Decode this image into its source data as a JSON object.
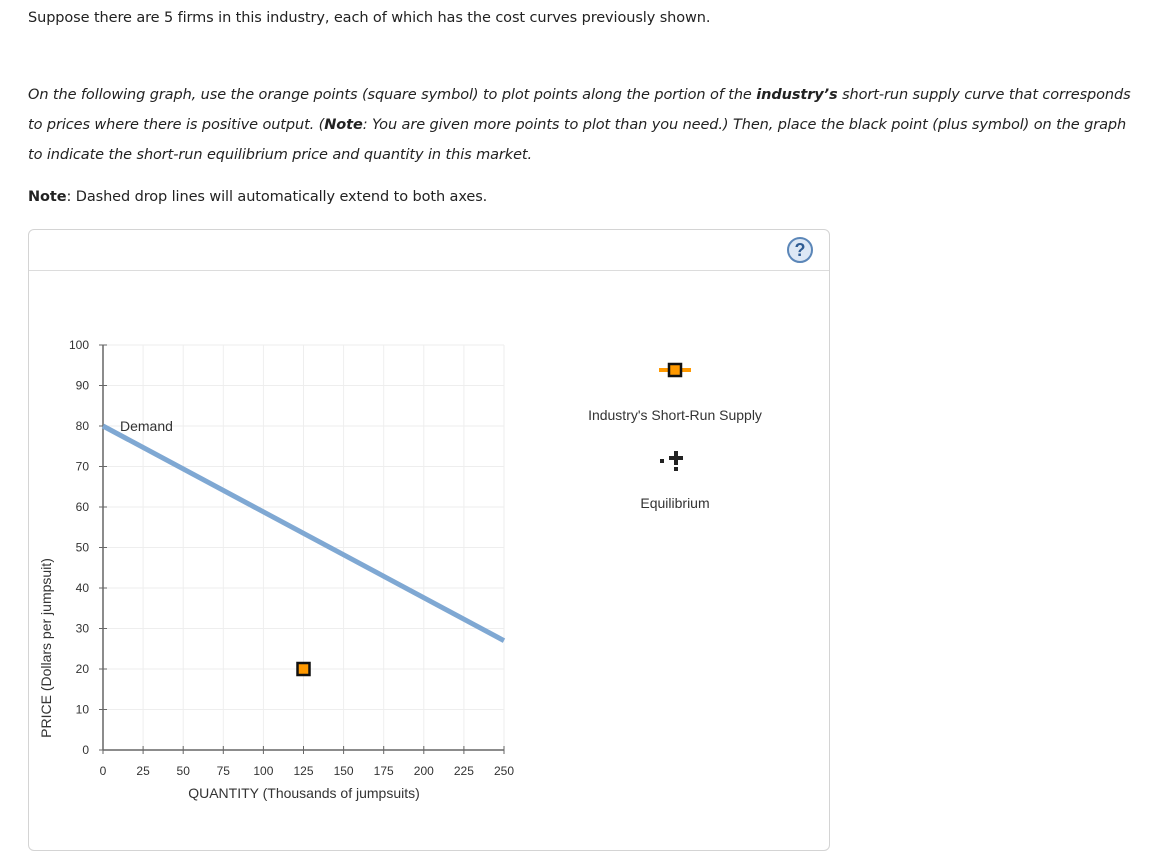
{
  "question": {
    "intro": "Suppose there are 5 firms in this industry, each of which has the cost curves previously shown.",
    "instruction_parts": {
      "a": "On the following graph, use the orange points (square symbol) to plot points along the portion of the ",
      "b_bold": "industry’s",
      "c": " short-run supply curve that corresponds to prices where there is positive output. (",
      "d_bold": "Note",
      "e": ": You are given more points to plot than you need.) Then, place the black point (plus symbol) on the graph to indicate the short-run equilibrium price and quantity in this market."
    },
    "note_label": "Note",
    "note_text": ": Dashed drop lines will automatically extend to both axes."
  },
  "panel": {
    "help_icon": "?"
  },
  "legend": {
    "supply_label": "Industry's Short-Run Supply",
    "equilibrium_label": "Equilibrium"
  },
  "colors": {
    "demand": "#7fa8d3",
    "supply_point": "#ff9900",
    "supply_point_border": "#111111",
    "equilibrium": "#222222",
    "grid": "#eeeeee",
    "axis": "#666666"
  },
  "chart_data": {
    "type": "line",
    "title": "",
    "xlabel": "QUANTITY (Thousands of jumpsuits)",
    "ylabel": "PRICE (Dollars per jumpsuit)",
    "xlim": [
      0,
      250
    ],
    "ylim": [
      0,
      100
    ],
    "x_ticks": [
      "0",
      "25",
      "50",
      "75",
      "100",
      "125",
      "150",
      "175",
      "200",
      "225",
      "250"
    ],
    "y_ticks": [
      "0",
      "10",
      "20",
      "30",
      "40",
      "50",
      "60",
      "70",
      "80",
      "90",
      "100"
    ],
    "grid": true,
    "series": [
      {
        "name": "Demand",
        "kind": "line",
        "points": [
          [
            0,
            80
          ],
          [
            250,
            27
          ]
        ]
      },
      {
        "name": "Industry's Short-Run Supply",
        "kind": "points",
        "marker": "square",
        "points": [
          [
            125,
            20
          ]
        ]
      }
    ],
    "annotations": [
      {
        "text": "Demand",
        "x": 10,
        "y": 80
      }
    ],
    "legend": [
      "Industry's Short-Run Supply",
      "Equilibrium"
    ],
    "legend_position": "right"
  }
}
